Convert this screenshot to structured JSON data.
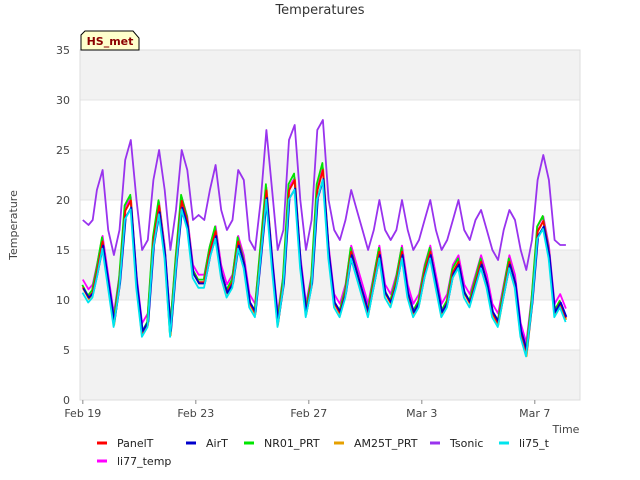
{
  "chart_data": {
    "type": "line",
    "title": "Temperatures",
    "xlabel": "Time",
    "ylabel": "Temperature",
    "ylim": [
      0,
      35
    ],
    "yticks": [
      0,
      5,
      10,
      15,
      20,
      25,
      30,
      35
    ],
    "xlim_days": [
      -0.1,
      17.6
    ],
    "xticks": [
      {
        "label": "Feb 19",
        "day": 0
      },
      {
        "label": "Feb 23",
        "day": 4
      },
      {
        "label": "Feb 27",
        "day": 8
      },
      {
        "label": "Mar 3",
        "day": 12
      },
      {
        "label": "Mar 7",
        "day": 16
      }
    ],
    "badge": "HS_met",
    "legend_position": "bottom",
    "band_color": "#f2f2f2",
    "base_series": {
      "days": [
        0.0,
        0.2,
        0.35,
        0.5,
        0.7,
        0.9,
        1.1,
        1.3,
        1.5,
        1.7,
        1.9,
        2.1,
        2.3,
        2.5,
        2.7,
        2.9,
        3.1,
        3.3,
        3.5,
        3.7,
        3.9,
        4.1,
        4.3,
        4.5,
        4.7,
        4.9,
        5.1,
        5.3,
        5.5,
        5.7,
        5.9,
        6.1,
        6.3,
        6.5,
        6.7,
        6.9,
        7.1,
        7.3,
        7.5,
        7.7,
        7.9,
        8.1,
        8.3,
        8.5,
        8.7,
        8.9,
        9.1,
        9.3,
        9.5,
        9.7,
        9.9,
        10.1,
        10.3,
        10.5,
        10.7,
        10.9,
        11.1,
        11.3,
        11.5,
        11.7,
        11.9,
        12.1,
        12.3,
        12.5,
        12.7,
        12.9,
        13.1,
        13.3,
        13.5,
        13.7,
        13.9,
        14.1,
        14.3,
        14.5,
        14.7,
        14.9,
        15.1,
        15.3,
        15.5,
        15.7,
        15.9,
        16.1,
        16.3,
        16.5,
        16.7,
        16.9,
        17.1
      ],
      "values": [
        11.5,
        10.5,
        11,
        13,
        16,
        12,
        8,
        12,
        19,
        20,
        12,
        7,
        8,
        16,
        19.5,
        15,
        7,
        14,
        20,
        18,
        13,
        12,
        12,
        15,
        17,
        13,
        11,
        12,
        16,
        14,
        10,
        9,
        15,
        21,
        14,
        8,
        12,
        21,
        22,
        14,
        9,
        12,
        21,
        23,
        15,
        10,
        9,
        11,
        15,
        13,
        11,
        9,
        12,
        15,
        11,
        10,
        12,
        15,
        11,
        9,
        10,
        13,
        15,
        12,
        9,
        10,
        13,
        14,
        11,
        10,
        12,
        14,
        12,
        9,
        8,
        11,
        14,
        12,
        7,
        5,
        10,
        17,
        18,
        15,
        9,
        10,
        8.5
      ],
      "temp_scale": [
        1,
        1,
        1,
        1,
        1,
        1,
        1,
        1,
        1,
        1,
        1,
        1,
        1,
        1,
        1,
        1,
        1,
        1,
        1,
        1,
        1,
        1,
        1,
        1,
        1,
        1,
        1,
        1,
        1,
        1,
        1,
        1,
        1,
        1,
        1,
        1,
        1,
        1,
        1,
        1,
        1,
        1,
        1,
        1,
        1,
        1,
        1,
        1,
        1,
        1,
        1,
        1,
        1,
        1,
        1,
        1,
        1,
        1,
        1,
        1,
        1,
        1,
        1,
        1,
        1,
        1,
        1,
        1,
        1,
        1,
        1,
        1,
        1,
        1,
        1,
        1,
        1,
        1,
        1,
        1,
        1,
        1,
        1,
        1,
        1,
        1,
        1
      ]
    },
    "tsonic_series": {
      "days": [
        0.0,
        0.2,
        0.35,
        0.5,
        0.7,
        0.9,
        1.1,
        1.3,
        1.5,
        1.7,
        1.9,
        2.1,
        2.3,
        2.5,
        2.7,
        2.9,
        3.1,
        3.3,
        3.5,
        3.7,
        3.9,
        4.1,
        4.3,
        4.5,
        4.7,
        4.9,
        5.1,
        5.3,
        5.5,
        5.7,
        5.9,
        6.1,
        6.3,
        6.5,
        6.7,
        6.9,
        7.1,
        7.3,
        7.5,
        7.7,
        7.9,
        8.1,
        8.3,
        8.5,
        8.7,
        8.9,
        9.1,
        9.3,
        9.5,
        9.7,
        9.9,
        10.1,
        10.3,
        10.5,
        10.7,
        10.9,
        11.1,
        11.3,
        11.5,
        11.7,
        11.9,
        12.1,
        12.3,
        12.5,
        12.7,
        12.9,
        13.1,
        13.3,
        13.5,
        13.7,
        13.9,
        14.1,
        14.3,
        14.5,
        14.7,
        14.9,
        15.1,
        15.3,
        15.5,
        15.7,
        15.9,
        16.1,
        16.3,
        16.5,
        16.7,
        16.9,
        17.1
      ],
      "values": [
        18,
        17.5,
        18,
        21,
        23,
        17,
        14.5,
        17,
        24,
        26,
        20,
        15,
        16,
        22,
        25,
        21,
        15,
        19,
        25,
        23,
        18,
        18.5,
        18,
        21,
        23.5,
        19,
        17,
        18,
        23,
        22,
        16,
        15,
        20,
        27,
        21,
        15,
        17,
        26,
        27.5,
        20,
        15,
        18,
        27,
        28,
        20,
        17,
        16,
        18,
        21,
        19,
        17,
        15,
        17,
        20,
        17,
        16,
        17,
        20,
        17,
        15,
        16,
        18,
        20,
        17,
        15,
        16,
        18,
        20,
        17,
        16,
        18,
        19,
        17,
        15,
        14,
        17,
        19,
        18,
        15,
        13,
        16,
        22,
        24.5,
        22,
        16,
        15.5,
        15.5
      ]
    },
    "series": [
      {
        "name": "PanelT",
        "color": "#ff0000",
        "offset": -0.2,
        "scale": 1.02,
        "phase": 0.0
      },
      {
        "name": "AirT",
        "color": "#0000cc",
        "offset": -0.4,
        "scale": 0.95,
        "phase": 0.02
      },
      {
        "name": "NR01_PRT",
        "color": "#00e600",
        "offset": 0.1,
        "scale": 1.06,
        "phase": -0.02
      },
      {
        "name": "AM25T_PRT",
        "color": "#e6a000",
        "offset": -0.3,
        "scale": 1.04,
        "phase": 0.01
      },
      {
        "name": "Tsonic",
        "color": "#9933ee",
        "offset": 0.0,
        "scale": 1.0,
        "phase": 0.0
      },
      {
        "name": "li75_t",
        "color": "#00e5ee",
        "offset": -0.8,
        "scale": 0.98,
        "phase": -0.01
      },
      {
        "name": "li77_temp",
        "color": "#ff00ff",
        "offset": 0.5,
        "scale": 0.97,
        "phase": 0.0
      }
    ]
  }
}
